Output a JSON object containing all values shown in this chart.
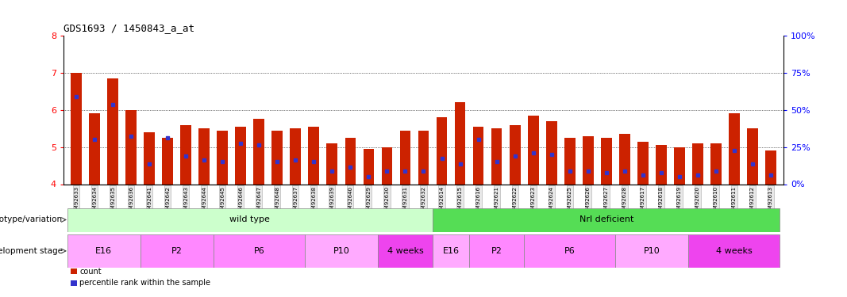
{
  "title": "GDS1693 / 1450843_a_at",
  "samples": [
    "GSM92633",
    "GSM92634",
    "GSM92635",
    "GSM92636",
    "GSM92641",
    "GSM92642",
    "GSM92643",
    "GSM92644",
    "GSM92645",
    "GSM92646",
    "GSM92647",
    "GSM92648",
    "GSM92637",
    "GSM92638",
    "GSM92639",
    "GSM92640",
    "GSM92629",
    "GSM92630",
    "GSM92631",
    "GSM92632",
    "GSM92614",
    "GSM92615",
    "GSM92616",
    "GSM92621",
    "GSM92622",
    "GSM92623",
    "GSM92624",
    "GSM92625",
    "GSM92626",
    "GSM92627",
    "GSM92628",
    "GSM92617",
    "GSM92618",
    "GSM92619",
    "GSM92620",
    "GSM92610",
    "GSM92611",
    "GSM92612",
    "GSM92613"
  ],
  "bar_heights": [
    7.0,
    5.9,
    6.85,
    6.0,
    5.4,
    5.25,
    5.6,
    5.5,
    5.45,
    5.55,
    5.75,
    5.45,
    5.5,
    5.55,
    5.1,
    5.25,
    4.95,
    5.0,
    5.45,
    5.45,
    5.8,
    6.2,
    5.55,
    5.5,
    5.6,
    5.85,
    5.7,
    5.25,
    5.3,
    5.25,
    5.35,
    5.15,
    5.05,
    5.0,
    5.1,
    5.1,
    5.9,
    5.5,
    4.9
  ],
  "blue_dot_heights": [
    6.35,
    5.2,
    6.15,
    5.3,
    4.55,
    5.25,
    4.75,
    4.65,
    4.6,
    5.1,
    5.05,
    4.6,
    4.65,
    4.6,
    4.35,
    4.45,
    4.2,
    4.35,
    4.35,
    4.35,
    4.7,
    4.55,
    5.2,
    4.6,
    4.75,
    4.85,
    4.8,
    4.35,
    4.35,
    4.3,
    4.35,
    4.25,
    4.3,
    4.2,
    4.25,
    4.35,
    4.9,
    4.55,
    4.25
  ],
  "ymin": 4.0,
  "ymax": 8.0,
  "yticks_left": [
    4,
    5,
    6,
    7,
    8
  ],
  "yticks_right": [
    0,
    25,
    50,
    75,
    100
  ],
  "bar_color": "#cc2200",
  "dot_color": "#3333cc",
  "background_color": "#ffffff",
  "genotype_groups": [
    {
      "label": "wild type",
      "start": 0,
      "end": 20,
      "color": "#ccffcc"
    },
    {
      "label": "Nrl deficient",
      "start": 20,
      "end": 39,
      "color": "#55dd55"
    }
  ],
  "stage_groups": [
    {
      "label": "E16",
      "start": 0,
      "end": 4,
      "color": "#ffaaff"
    },
    {
      "label": "P2",
      "start": 4,
      "end": 8,
      "color": "#ff88ff"
    },
    {
      "label": "P6",
      "start": 8,
      "end": 13,
      "color": "#ff88ff"
    },
    {
      "label": "P10",
      "start": 13,
      "end": 17,
      "color": "#ffaaff"
    },
    {
      "label": "4 weeks",
      "start": 17,
      "end": 20,
      "color": "#ee44ee"
    },
    {
      "label": "E16",
      "start": 20,
      "end": 22,
      "color": "#ffaaff"
    },
    {
      "label": "P2",
      "start": 22,
      "end": 25,
      "color": "#ff88ff"
    },
    {
      "label": "P6",
      "start": 25,
      "end": 30,
      "color": "#ff88ff"
    },
    {
      "label": "P10",
      "start": 30,
      "end": 34,
      "color": "#ffaaff"
    },
    {
      "label": "4 weeks",
      "start": 34,
      "end": 39,
      "color": "#ee44ee"
    }
  ],
  "row_label_genotype": "genotype/variation",
  "row_label_stage": "development stage",
  "legend_count": "count",
  "legend_percentile": "percentile rank within the sample"
}
